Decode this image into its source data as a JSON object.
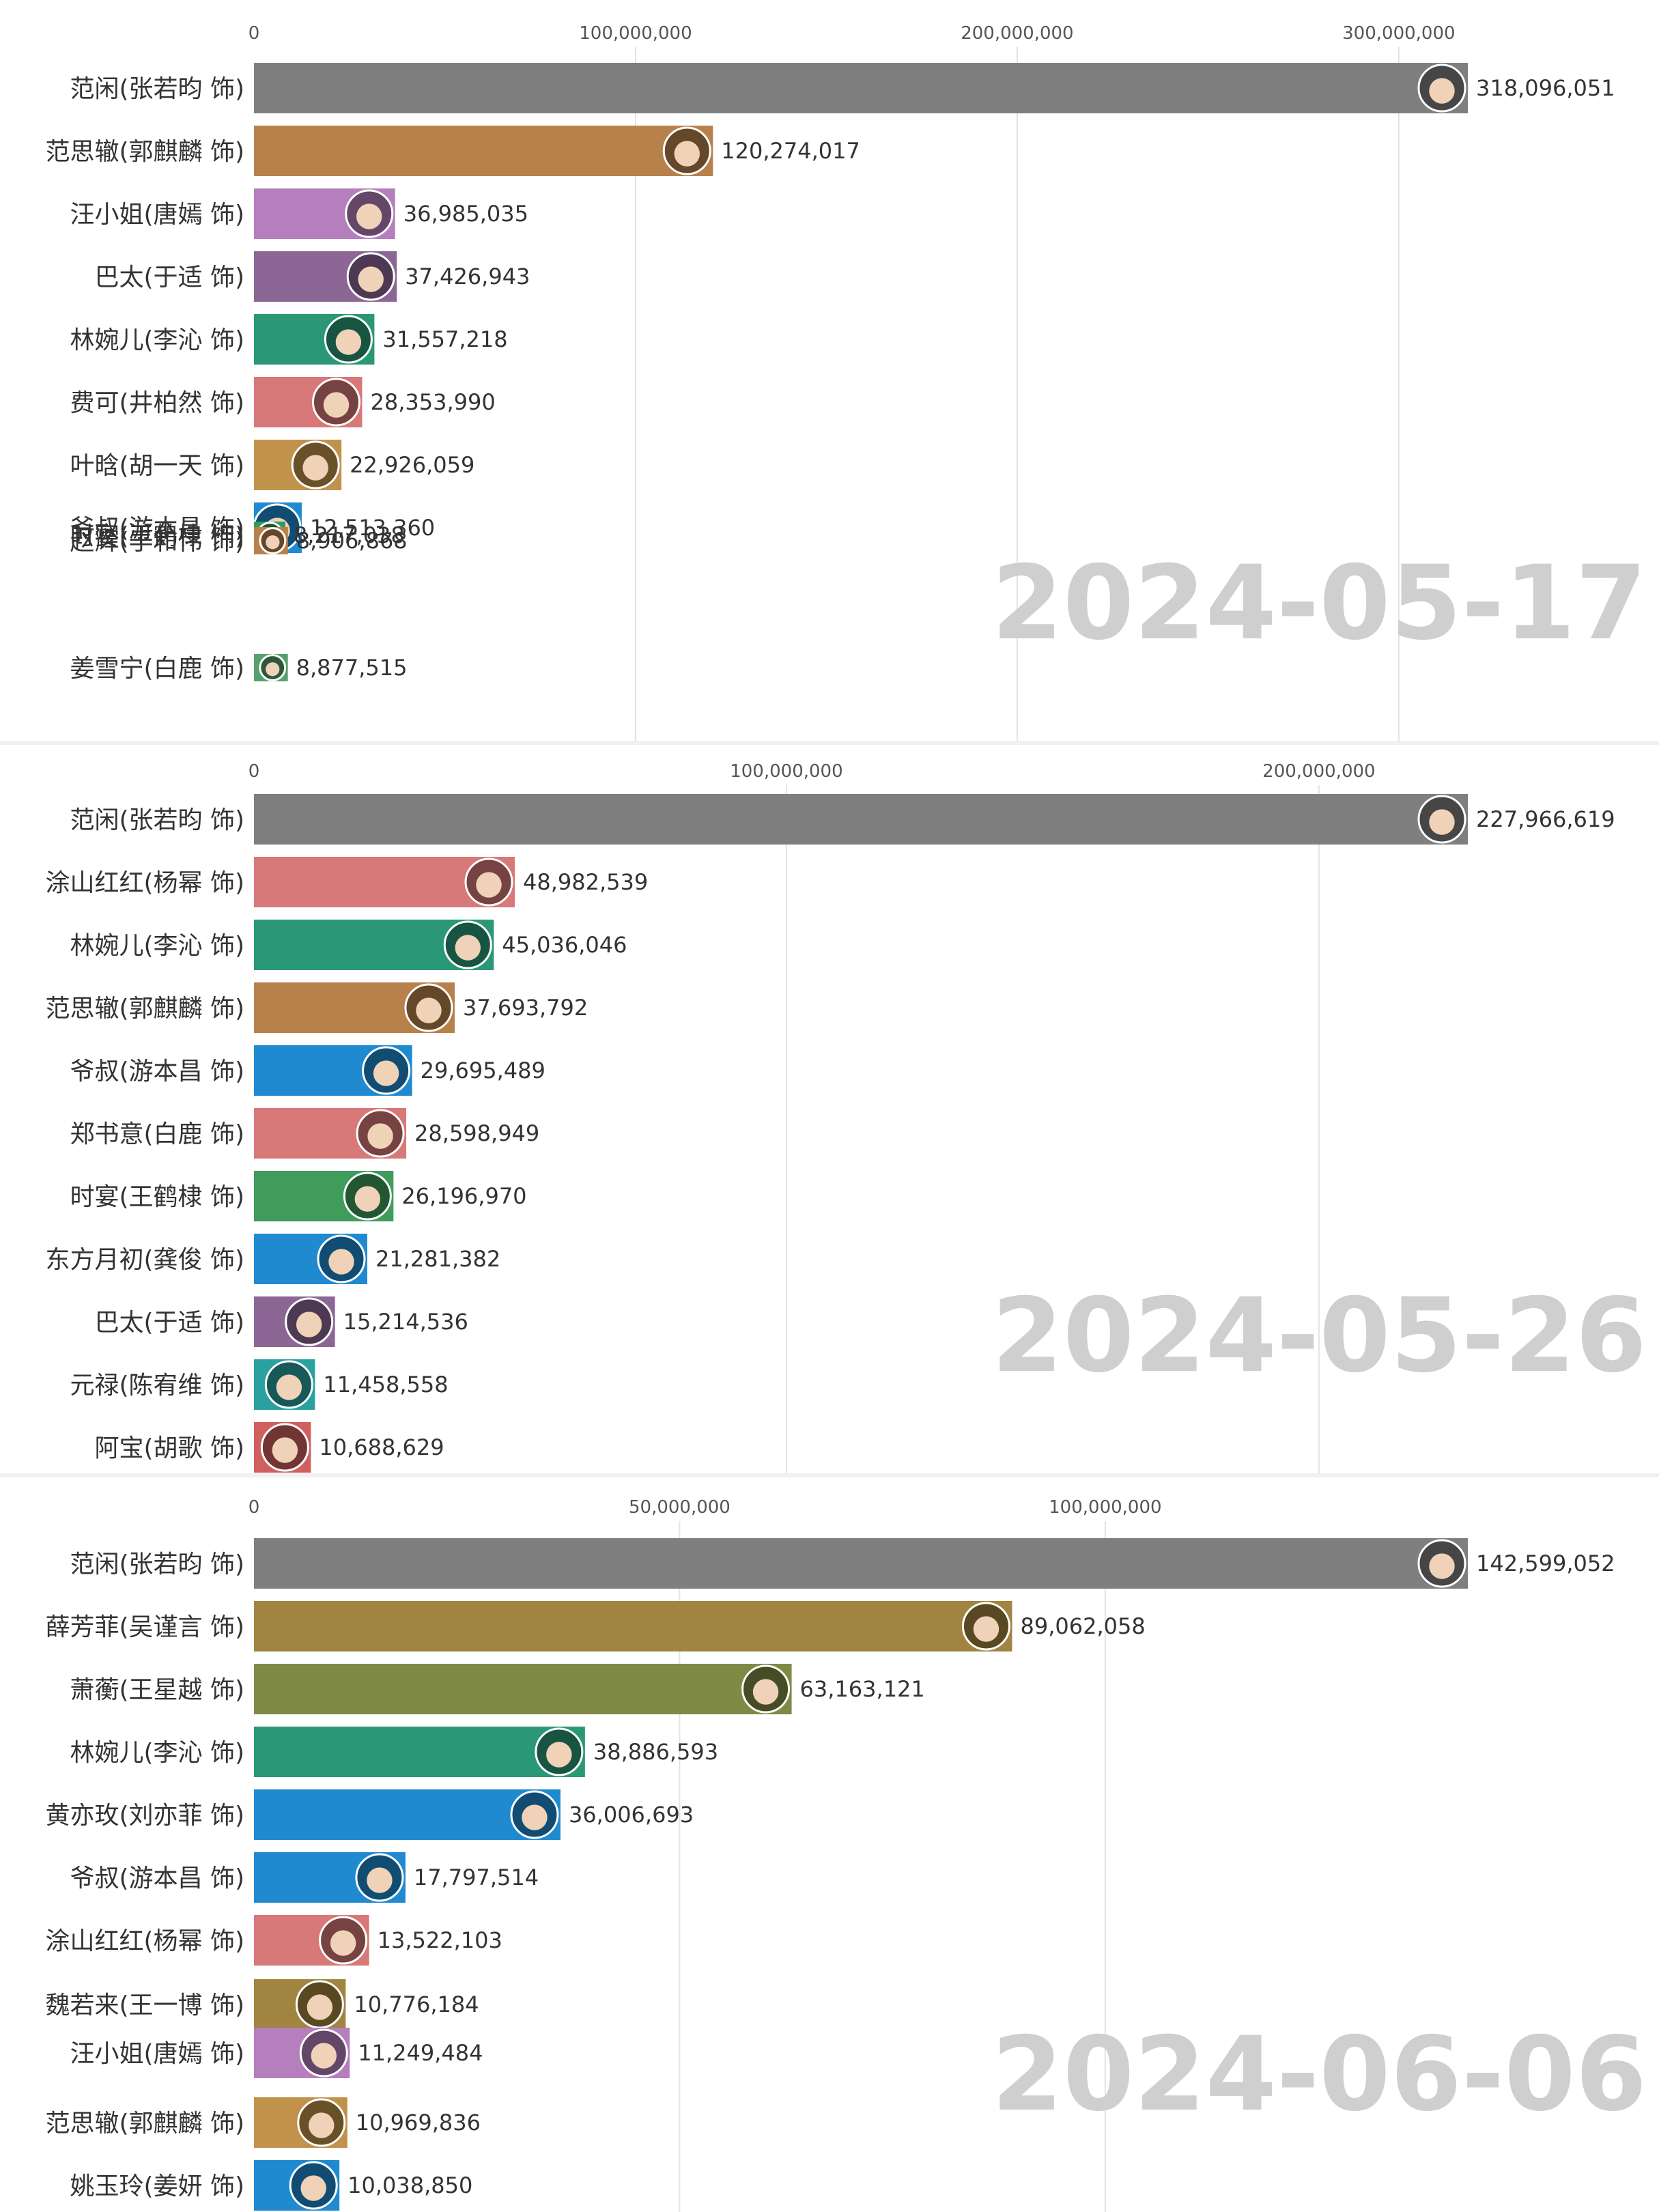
{
  "chart_data": [
    {
      "type": "bar",
      "orientation": "horizontal",
      "date": "2024-05-17",
      "xlim": [
        0,
        318096051
      ],
      "ticks": [
        0,
        100000000,
        200000000,
        300000000
      ],
      "tick_labels": [
        "0",
        "100,000,000",
        "200,000,000",
        "300,000,000"
      ],
      "grid": true,
      "categories": [
        "范闲(张若昀 饰)",
        "范思辙(郭麒麟 饰)",
        "汪小姐(唐嫣 饰)",
        "巴太(于适 饰)",
        "林婉儿(李沁 饰)",
        "费可(井柏然 饰)",
        "叶晗(胡一天 饰)",
        "爷叔(游本昌 饰)",
        "时宴(王鹤棣 饰)",
        "赵辉(于和伟 饰)",
        "姜雪宁(白鹿 饰)"
      ],
      "values": [
        318096051,
        120274017,
        36985035,
        37426943,
        31557218,
        28353990,
        22926059,
        12513360,
        8217038,
        8906868,
        8877515
      ],
      "value_labels": [
        "318,096,051",
        "120,274,017",
        "36,985,035",
        "37,426,943",
        "31,557,218",
        "28,353,990",
        "22,926,059",
        "12,513,360",
        "8,217,038",
        "8,906,868",
        "8,877,515"
      ],
      "colors": [
        "#7f7f7f",
        "#b7814b",
        "#b57fbd",
        "#8c6796",
        "#2a9876",
        "#d87878",
        "#c1924b",
        "#1f8ad0",
        "#2f9c64",
        "#b7814b",
        "#55a06b"
      ]
    },
    {
      "type": "bar",
      "orientation": "horizontal",
      "date": "2024-05-26",
      "xlim": [
        0,
        227966619
      ],
      "ticks": [
        0,
        100000000,
        200000000
      ],
      "tick_labels": [
        "0",
        "100,000,000",
        "200,000,000"
      ],
      "grid": true,
      "categories": [
        "范闲(张若昀 饰)",
        "涂山红红(杨幂 饰)",
        "林婉儿(李沁 饰)",
        "范思辙(郭麒麟 饰)",
        "爷叔(游本昌 饰)",
        "郑书意(白鹿 饰)",
        "时宴(王鹤棣 饰)",
        "东方月初(龚俊 饰)",
        "巴太(于适 饰)",
        "元禄(陈宥维 饰)",
        "阿宝(胡歌 饰)"
      ],
      "values": [
        227966619,
        48982539,
        45036046,
        37693792,
        29695489,
        28598949,
        26196970,
        21281382,
        15214536,
        11458558,
        10688629
      ],
      "value_labels": [
        "227,966,619",
        "48,982,539",
        "45,036,046",
        "37,693,792",
        "29,695,489",
        "28,598,949",
        "26,196,970",
        "21,281,382",
        "15,214,536",
        "11,458,558",
        "10,688,629"
      ],
      "colors": [
        "#7f7f7f",
        "#d87878",
        "#2a9876",
        "#b7814b",
        "#1f8ad0",
        "#d87878",
        "#3f9c5b",
        "#1f8ad0",
        "#8c6796",
        "#2aa0a0",
        "#d06060"
      ]
    },
    {
      "type": "bar",
      "orientation": "horizontal",
      "date": "2024-06-06",
      "xlim": [
        0,
        142599052
      ],
      "ticks": [
        0,
        50000000,
        100000000
      ],
      "tick_labels": [
        "0",
        "50,000,000",
        "100,000,000"
      ],
      "grid": true,
      "categories": [
        "范闲(张若昀 饰)",
        "薛芳菲(吴谨言 饰)",
        "萧蘅(王星越 饰)",
        "林婉儿(李沁 饰)",
        "黄亦玫(刘亦菲 饰)",
        "爷叔(游本昌 饰)",
        "涂山红红(杨幂 饰)",
        "魏若来(王一博 饰)",
        "汪小姐(唐嫣 饰)",
        "范思辙(郭麒麟 饰)",
        "姚玉玲(姜妍 饰)"
      ],
      "values": [
        142599052,
        89062058,
        63163121,
        38886593,
        36006693,
        17797514,
        13522103,
        10776184,
        11249484,
        10969836,
        10038850
      ],
      "value_labels": [
        "142,599,052",
        "89,062,058",
        "63,163,121",
        "38,886,593",
        "36,006,693",
        "17,797,514",
        "13,522,103",
        "10,776,184",
        "11,249,484",
        "10,969,836",
        "10,038,850"
      ],
      "colors": [
        "#7f7f7f",
        "#a08440",
        "#7f8a45",
        "#2a9876",
        "#1f8ad0",
        "#1f8ad0",
        "#d87878",
        "#a08440",
        "#b57fbd",
        "#c1924b",
        "#1f8ad0"
      ]
    }
  ]
}
